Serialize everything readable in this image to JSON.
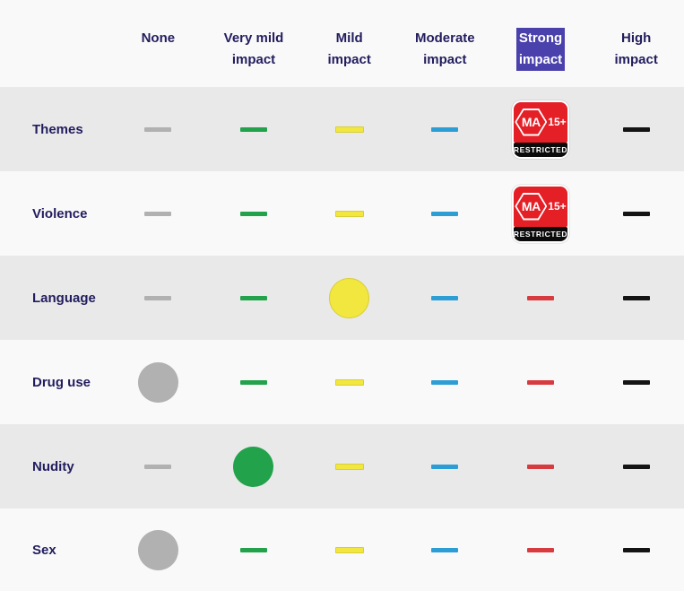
{
  "table": {
    "columns": [
      {
        "id": "none",
        "lines": [
          "None"
        ],
        "color": "#b1b1b1",
        "highlighted": false
      },
      {
        "id": "very_mild",
        "lines": [
          "Very mild",
          "impact"
        ],
        "color": "#22a24b",
        "highlighted": false
      },
      {
        "id": "mild",
        "lines": [
          "Mild",
          "impact"
        ],
        "color": "#f2e73e",
        "border": "#d9ce37",
        "highlighted": false
      },
      {
        "id": "moderate",
        "lines": [
          "Moderate",
          "impact"
        ],
        "color": "#2d9dd5",
        "highlighted": false
      },
      {
        "id": "strong",
        "lines": [
          "Strong",
          "impact"
        ],
        "color": "#d83b3f",
        "highlighted": true
      },
      {
        "id": "high",
        "lines": [
          "High",
          "impact"
        ],
        "color": "#141414",
        "highlighted": false
      }
    ],
    "rows": [
      {
        "label": "Themes",
        "selected": "strong",
        "selected_marker": "ma15_badge"
      },
      {
        "label": "Violence",
        "selected": "strong",
        "selected_marker": "ma15_badge"
      },
      {
        "label": "Language",
        "selected": "mild",
        "selected_marker": "circle"
      },
      {
        "label": "Drug use",
        "selected": "none",
        "selected_marker": "circle"
      },
      {
        "label": "Nudity",
        "selected": "very_mild",
        "selected_marker": "circle"
      },
      {
        "label": "Sex",
        "selected": "none",
        "selected_marker": "circle"
      }
    ]
  },
  "badge": {
    "rating": "MA",
    "age": "15+",
    "restricted_label": "RESTRICTED",
    "background": "#e41f26"
  },
  "colors": {
    "page_background": "#f9f9f9",
    "row_alt_background": "#e9e9e9",
    "label_text": "#221d5e",
    "selection_highlight": "#4a41ad",
    "selection_text": "#ffffff"
  }
}
